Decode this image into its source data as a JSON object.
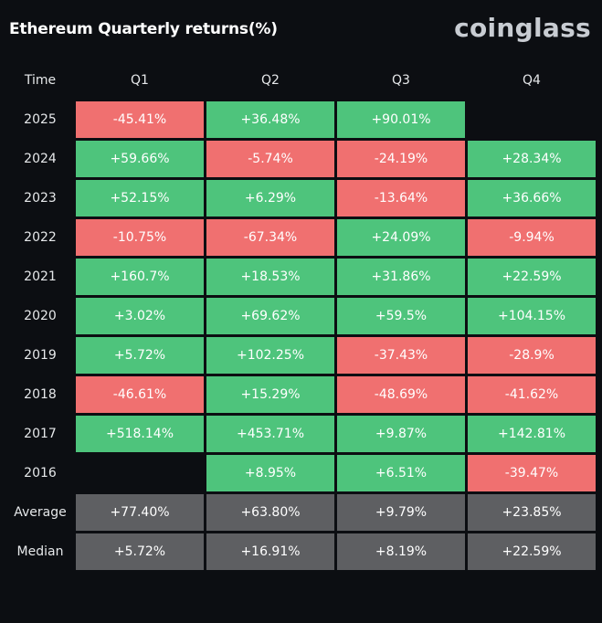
{
  "header": {
    "title": "Ethereum Quarterly returns(%)",
    "brand": "coinglass"
  },
  "colors": {
    "positive": "#4ec47c",
    "negative": "#f07070",
    "stat": "#5e5f62",
    "background": "#0c0e12"
  },
  "chart_data": {
    "type": "table",
    "title": "Ethereum Quarterly returns(%)",
    "columns": [
      "Time",
      "Q1",
      "Q2",
      "Q3",
      "Q4"
    ],
    "rows": [
      {
        "label": "2025",
        "values": [
          "-45.41%",
          "+36.48%",
          "+90.01%",
          ""
        ]
      },
      {
        "label": "2024",
        "values": [
          "+59.66%",
          "-5.74%",
          "-24.19%",
          "+28.34%"
        ]
      },
      {
        "label": "2023",
        "values": [
          "+52.15%",
          "+6.29%",
          "-13.64%",
          "+36.66%"
        ]
      },
      {
        "label": "2022",
        "values": [
          "-10.75%",
          "-67.34%",
          "+24.09%",
          "-9.94%"
        ]
      },
      {
        "label": "2021",
        "values": [
          "+160.7%",
          "+18.53%",
          "+31.86%",
          "+22.59%"
        ]
      },
      {
        "label": "2020",
        "values": [
          "+3.02%",
          "+69.62%",
          "+59.5%",
          "+104.15%"
        ]
      },
      {
        "label": "2019",
        "values": [
          "+5.72%",
          "+102.25%",
          "-37.43%",
          "-28.9%"
        ]
      },
      {
        "label": "2018",
        "values": [
          "-46.61%",
          "+15.29%",
          "-48.69%",
          "-41.62%"
        ]
      },
      {
        "label": "2017",
        "values": [
          "+518.14%",
          "+453.71%",
          "+9.87%",
          "+142.81%"
        ]
      },
      {
        "label": "2016",
        "values": [
          "",
          "+8.95%",
          "+6.51%",
          "-39.47%"
        ]
      },
      {
        "label": "Average",
        "values": [
          "+77.40%",
          "+63.80%",
          "+9.79%",
          "+23.85%"
        ],
        "stat": true
      },
      {
        "label": "Median",
        "values": [
          "+5.72%",
          "+16.91%",
          "+8.19%",
          "+22.59%"
        ],
        "stat": true
      }
    ]
  }
}
